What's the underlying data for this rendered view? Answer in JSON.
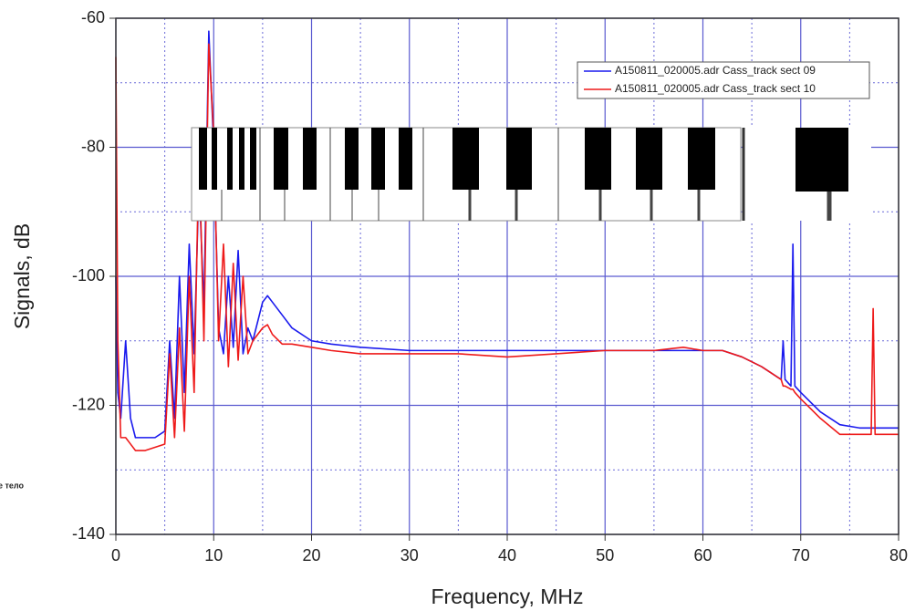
{
  "chart_data": {
    "type": "line",
    "xlabel": "Frequency, MHz",
    "ylabel": "Signals, dB",
    "side_note": "е тело",
    "xlim": [
      0,
      80
    ],
    "ylim": [
      -140,
      -60
    ],
    "xticks": [
      0,
      10,
      20,
      30,
      40,
      50,
      60,
      70,
      80
    ],
    "yticks": [
      -60,
      -80,
      -100,
      -120,
      -140
    ],
    "x_minor_grid": [
      5,
      15,
      25,
      35,
      45,
      55,
      65,
      75
    ],
    "y_minor_grid": [
      -70,
      -90,
      -110,
      -130
    ],
    "grid": true,
    "legend": "upper right",
    "x": [
      0,
      0.2,
      0.5,
      1,
      1.5,
      2,
      3,
      4,
      5,
      5.5,
      6,
      6.5,
      7,
      7.5,
      8,
      8.5,
      9,
      9.5,
      10,
      10.5,
      11,
      11.5,
      12,
      12.5,
      13,
      13.5,
      14,
      15,
      15.5,
      16,
      17,
      18,
      20,
      22,
      25,
      30,
      35,
      40,
      45,
      50,
      55,
      58,
      60,
      62,
      64,
      66,
      68,
      68.2,
      68.4,
      69,
      69.2,
      69.4,
      70,
      72,
      74,
      76,
      77.2,
      77.4,
      77.6,
      78,
      80
    ],
    "series": [
      {
        "name": "A150811_020005.adr Cass_track sect 09",
        "color": "#1a1aee",
        "values": [
          -100,
          -118,
          -122,
          -110,
          -122,
          -125,
          -125,
          -125,
          -124,
          -110,
          -122,
          -100,
          -118,
          -95,
          -112,
          -85,
          -105,
          -62,
          -80,
          -108,
          -112,
          -100,
          -111,
          -96,
          -112,
          -108,
          -110,
          -104,
          -103,
          -104,
          -106,
          -108,
          -110,
          -110.5,
          -111,
          -111.5,
          -111.5,
          -111.5,
          -111.5,
          -111.5,
          -111.5,
          -111.5,
          -111.5,
          -111.5,
          -112.5,
          -114,
          -116,
          -110,
          -116,
          -117,
          -95,
          -117,
          -118,
          -121,
          -123,
          -123.5,
          -123.5,
          -123.5,
          -123.5,
          -123.5,
          -123.5
        ]
      },
      {
        "name": "A150811_020005.adr Cass_track sect 10",
        "color": "#ee1a1a",
        "values": [
          -66,
          -110,
          -125,
          -125,
          -126,
          -127,
          -127,
          -126.5,
          -126,
          -112,
          -125,
          -108,
          -124,
          -100,
          -118,
          -80,
          -110,
          -64,
          -78,
          -110,
          -95,
          -114,
          -98,
          -113,
          -100,
          -112,
          -110,
          -108,
          -107.5,
          -109,
          -110.5,
          -110.5,
          -111,
          -111.5,
          -112,
          -112,
          -112,
          -112.5,
          -112,
          -111.5,
          -111.5,
          -111,
          -111.5,
          -111.5,
          -112.5,
          -114,
          -116,
          -117,
          -117,
          -117.5,
          -117.5,
          -118,
          -119,
          -122,
          -124.5,
          -124.5,
          -124.5,
          -105,
          -124.5,
          -124.5,
          -124.5
        ]
      }
    ]
  }
}
